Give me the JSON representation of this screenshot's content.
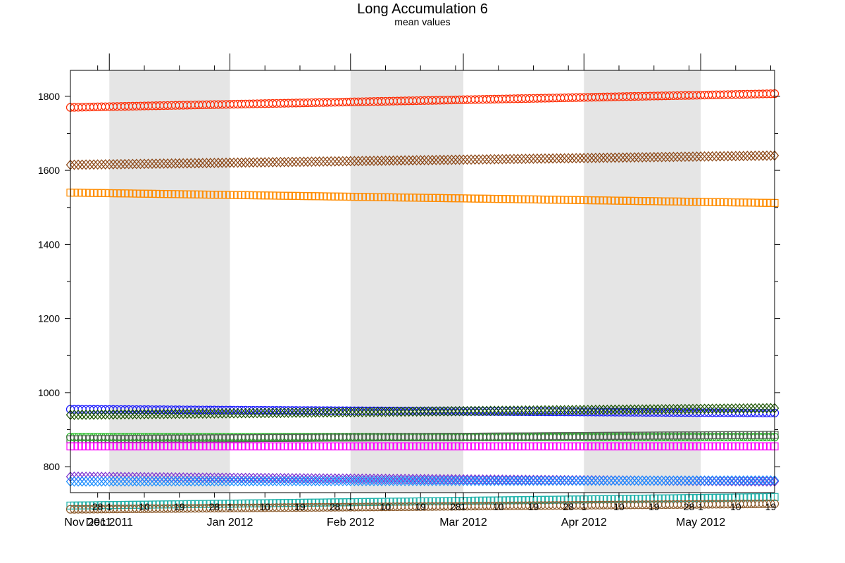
{
  "chart_data": {
    "type": "scatter",
    "title": "Long Accumulation 6",
    "subtitle": "mean values",
    "xlabel": "",
    "ylabel": "",
    "x_range": [
      "2011-11-21",
      "2012-05-20"
    ],
    "ylim": [
      730,
      1870
    ],
    "grid": false,
    "legend": "none",
    "y_ticks": [
      800,
      1000,
      1200,
      1400,
      1600,
      1800
    ],
    "shaded_months": [
      "2011-12",
      "2012-02",
      "2012-04"
    ],
    "month_labels": [
      {
        "date": "2011-11-01",
        "label": "Nov 2011"
      },
      {
        "date": "2011-12-01",
        "label": "Dec 2011"
      },
      {
        "date": "2012-01-01",
        "label": "Jan 2012"
      },
      {
        "date": "2012-02-01",
        "label": "Feb 2012"
      },
      {
        "date": "2012-03-01",
        "label": "Mar 2012"
      },
      {
        "date": "2012-04-01",
        "label": "Apr 2012"
      },
      {
        "date": "2012-05-01",
        "label": "May 2012"
      }
    ],
    "day_tick_labels": [
      "1",
      "10",
      "19",
      "28"
    ],
    "series": [
      {
        "color": "#ff2a00",
        "marker": "circle",
        "start": 1770,
        "end": 1807
      },
      {
        "color": "#8b4513",
        "marker": "diamond",
        "start": 1615,
        "end": 1640
      },
      {
        "color": "#ff8c00",
        "marker": "square",
        "start": 1540,
        "end": 1512
      },
      {
        "color": "#1a1aff",
        "marker": "circle",
        "start": 955,
        "end": 945
      },
      {
        "color": "#1a5200",
        "marker": "diamond",
        "start": 940,
        "end": 958
      },
      {
        "color": "#22bb22",
        "marker": "circle",
        "start": 880,
        "end": 880
      },
      {
        "color": "#556655",
        "marker": "square",
        "start": 874,
        "end": 886
      },
      {
        "color": "#ff00ff",
        "marker": "square",
        "start": 855,
        "end": 855
      },
      {
        "color": "#7a2fd0",
        "marker": "diamond",
        "start": 773,
        "end": 760
      },
      {
        "color": "#1e90ff",
        "marker": "diamond",
        "start": 760,
        "end": 763
      },
      {
        "color": "#20b2aa",
        "marker": "square",
        "start": 695,
        "end": 718
      },
      {
        "color": "#8b5a2b",
        "marker": "circle",
        "start": 685,
        "end": 700
      }
    ]
  }
}
